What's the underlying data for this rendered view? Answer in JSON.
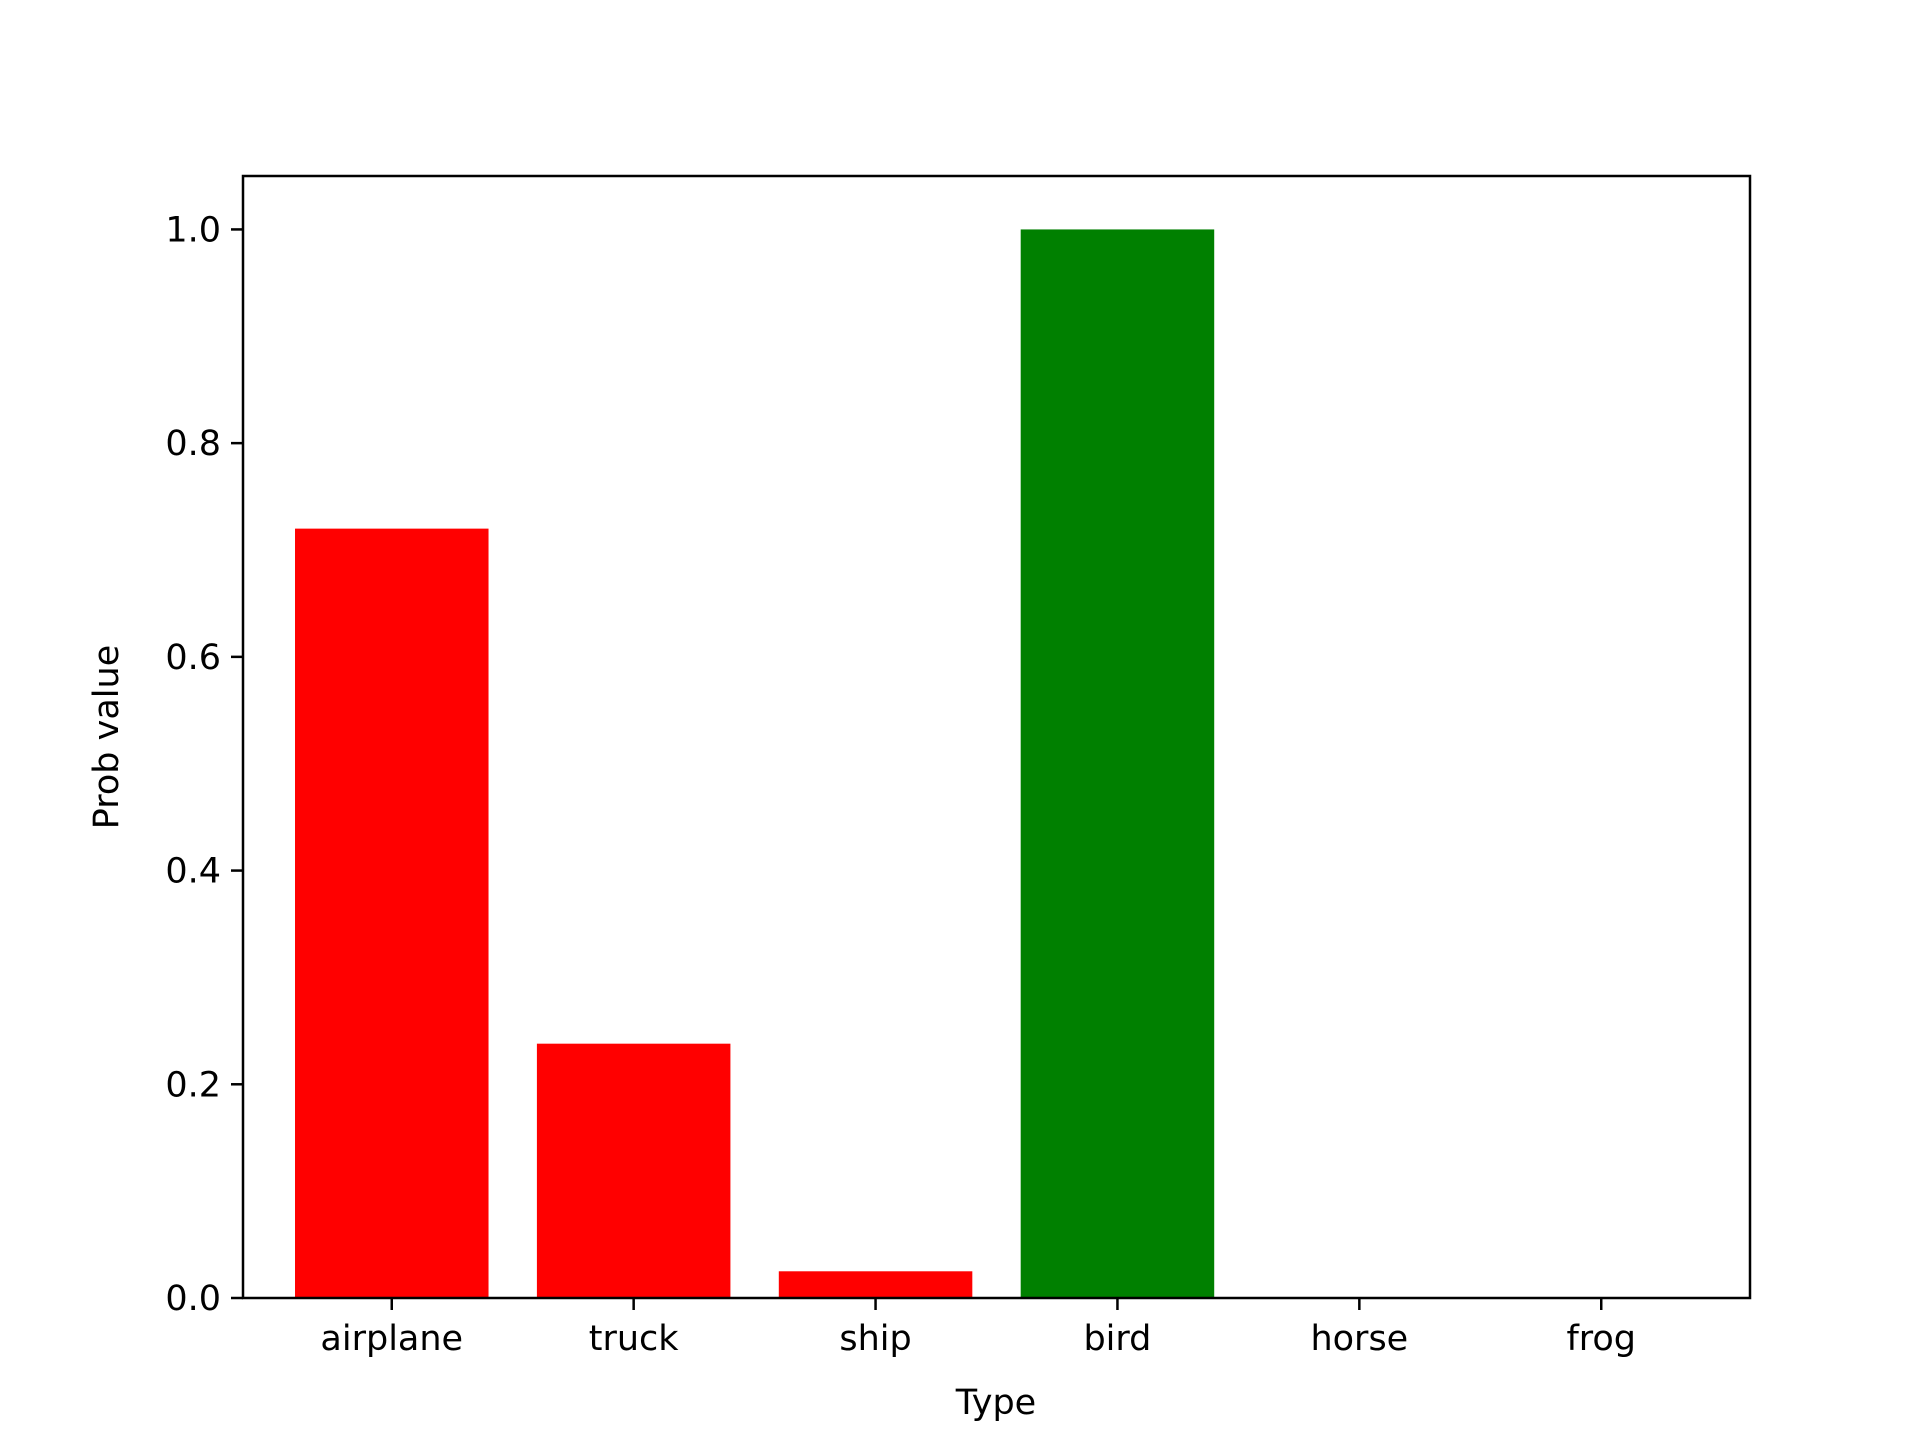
{
  "chart_data": {
    "type": "bar",
    "title": "",
    "xlabel": "Type",
    "ylabel": "Prob value",
    "categories": [
      "airplane",
      "truck",
      "ship",
      "bird",
      "horse",
      "frog"
    ],
    "values": [
      0.72,
      0.238,
      0.025,
      1.0,
      0.0,
      0.0
    ],
    "colors": [
      "#ff0000",
      "#ff0000",
      "#ff0000",
      "#008000",
      "#ff0000",
      "#ff0000"
    ],
    "ylim": [
      0,
      1.05
    ],
    "yticks": [
      0.0,
      0.2,
      0.4,
      0.6,
      0.8,
      1.0
    ],
    "ytick_labels": [
      "0.0",
      "0.2",
      "0.4",
      "0.6",
      "0.8",
      "1.0"
    ],
    "grid": false,
    "legend": "none"
  }
}
